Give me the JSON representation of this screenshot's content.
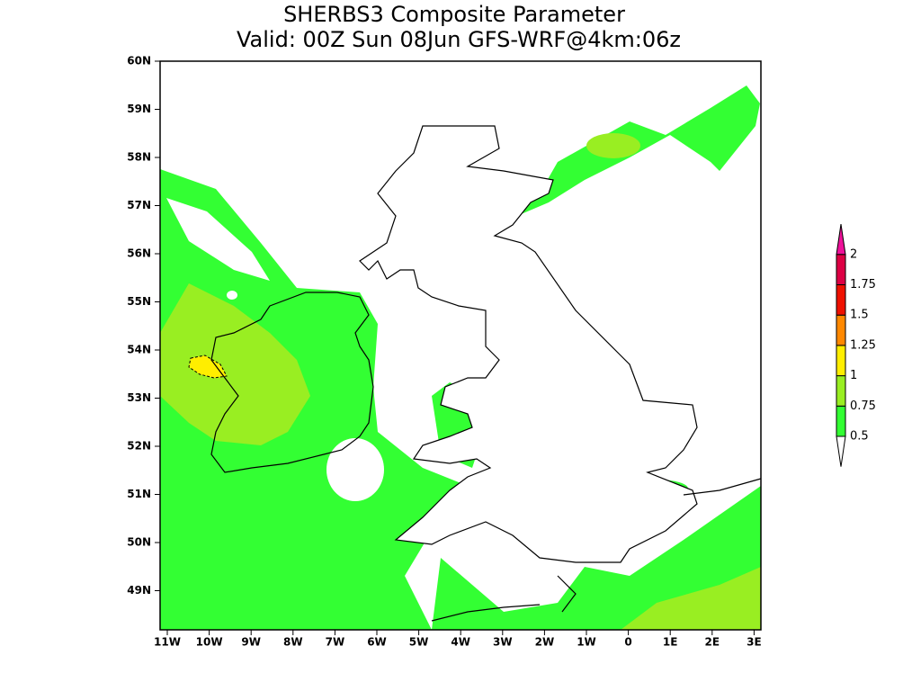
{
  "header": {
    "title": [
      "SHERBS3 Composite Parameter",
      "Valid: 00Z Sun 08Jun GFS-WRF@4km:06z"
    ]
  },
  "map": {
    "lat_ticks": [
      "60N",
      "59N",
      "58N",
      "57N",
      "56N",
      "55N",
      "54N",
      "53N",
      "52N",
      "51N",
      "50N",
      "49N"
    ],
    "lon_ticks": [
      "11W",
      "10W",
      "9W",
      "8W",
      "7W",
      "6W",
      "5W",
      "4W",
      "3W",
      "2W",
      "1W",
      "0",
      "1E",
      "2E",
      "3E"
    ]
  },
  "colorbar": {
    "labels": [
      "0.5",
      "0.75",
      "1",
      "1.25",
      "1.5",
      "1.75",
      "2"
    ],
    "colors": [
      "#33ff33",
      "#99ee22",
      "#ffee00",
      "#ff8800",
      "#ee1100",
      "#dd0044",
      "#ee1199"
    ]
  }
}
